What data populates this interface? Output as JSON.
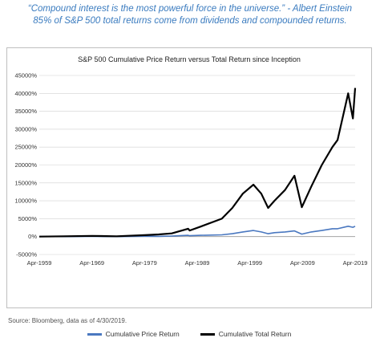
{
  "quote": {
    "line1": "“Compound interest is the most powerful force in the universe.” - Albert Einstein",
    "line2": "85% of S&P 500 total returns come from dividends and compounded returns."
  },
  "source": "Source: Bloomberg, data as of 4/30/2019.",
  "colors": {
    "price": "#4a78c0",
    "total": "#000000",
    "grid": "#d0d0d0"
  },
  "chart_data": {
    "type": "line",
    "title": "S&P 500 Cumulative Price Return versus Total Return since Inception",
    "xlabel": "",
    "ylabel": "",
    "x_ticks": [
      "Apr-1959",
      "Apr-1969",
      "Apr-1979",
      "Apr-1989",
      "Apr-1999",
      "Apr-2009",
      "Apr-2019"
    ],
    "y_ticks": [
      "-5000%",
      "0%",
      "5000%",
      "10000%",
      "15000%",
      "20000%",
      "25000%",
      "30000%",
      "35000%",
      "40000%",
      "45000%"
    ],
    "xlim": [
      1959.33,
      2019.33
    ],
    "ylim": [
      -5000,
      45000
    ],
    "grid": "horizontal",
    "legend_position": "bottom",
    "series": [
      {
        "name": "Cumulative Price Return",
        "x": [
          1959.33,
          1964,
          1969.33,
          1974,
          1979.33,
          1982,
          1984.5,
          1987.6,
          1987.9,
          1990,
          1994,
          1996,
          1998,
          2000.0,
          2001.5,
          2002.8,
          2004,
          2006,
          2007.8,
          2009.2,
          2011,
          2013,
          2015,
          2016,
          2018,
          2018.9,
          2019.33
        ],
        "y": [
          0,
          10,
          50,
          0,
          80,
          70,
          150,
          350,
          250,
          350,
          500,
          800,
          1300,
          1700,
          1300,
          800,
          1100,
          1300,
          1600,
          700,
          1300,
          1700,
          2200,
          2200,
          2900,
          2600,
          2900
        ]
      },
      {
        "name": "Cumulative Total Return",
        "x": [
          1959.33,
          1964,
          1969.33,
          1974,
          1979.33,
          1982,
          1984.5,
          1987.6,
          1987.9,
          1990,
          1994,
          1996,
          1998,
          2000.0,
          2001.5,
          2002.8,
          2004,
          2006,
          2007.8,
          2009.2,
          2011,
          2013,
          2015,
          2016,
          2018,
          2018.9,
          2019.33
        ],
        "y": [
          0,
          100,
          200,
          100,
          400,
          600,
          900,
          2200,
          1700,
          2800,
          5000,
          8000,
          12000,
          14500,
          12000,
          8000,
          10000,
          13000,
          17000,
          8200,
          14000,
          20000,
          25000,
          27000,
          40000,
          33000,
          41500
        ]
      }
    ]
  }
}
